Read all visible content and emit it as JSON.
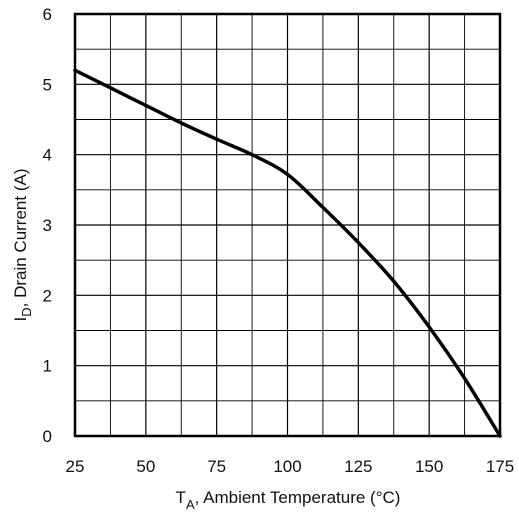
{
  "chart_data": {
    "type": "line",
    "title": "",
    "xlabel": {
      "symbol": "T",
      "subscript": "A",
      "text": ", Ambient Temperature (°C)"
    },
    "ylabel": {
      "symbol": "I",
      "subscript": "D",
      "text": ",  Drain Current (A)"
    },
    "xlim": [
      25,
      175
    ],
    "ylim": [
      0,
      6
    ],
    "x_ticks": [
      25,
      50,
      75,
      100,
      125,
      150,
      175
    ],
    "y_ticks": [
      0,
      1,
      2,
      3,
      4,
      5,
      6
    ],
    "x_tick_labels": [
      "25",
      "50",
      "75",
      "100",
      "125",
      "150",
      "175"
    ],
    "y_tick_labels": [
      "0",
      "1",
      "2",
      "3",
      "4",
      "5",
      "6"
    ],
    "grid": true,
    "x_minor_gridlines": [
      37.5,
      62.5,
      87.5,
      112.5,
      137.5,
      162.5
    ],
    "y_minor_gridlines": [
      0.5,
      1.5,
      2.5,
      3.5,
      4.5,
      5.5
    ],
    "colors": {
      "line": "#000000",
      "grid": "#000000",
      "frame": "#000000"
    },
    "series": [
      {
        "x": [
          25,
          37.5,
          50,
          62.5,
          75,
          87.5,
          100,
          112.5,
          125,
          137.5,
          150,
          162.5,
          175
        ],
        "y": [
          5.2,
          4.95,
          4.7,
          4.45,
          4.22,
          4.0,
          3.72,
          3.25,
          2.75,
          2.2,
          1.55,
          0.82,
          0.0
        ]
      }
    ]
  }
}
